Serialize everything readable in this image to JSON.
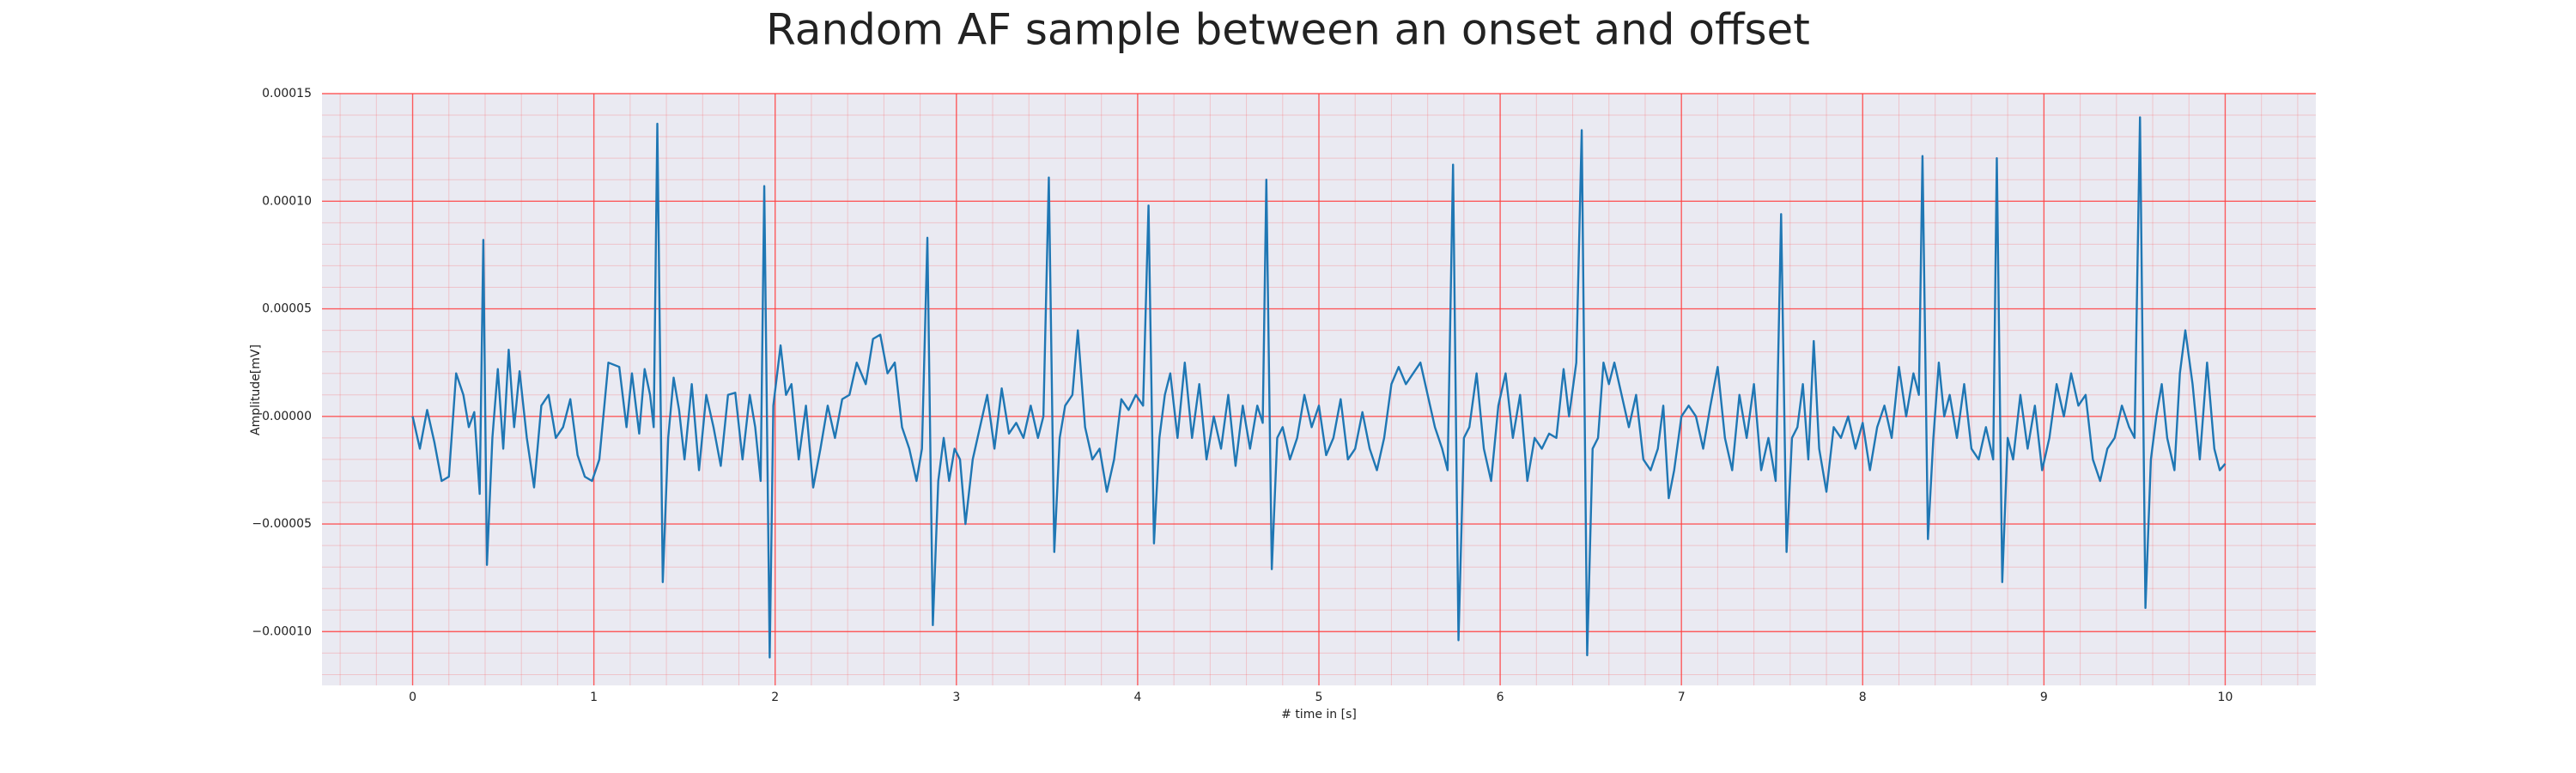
{
  "chart_data": {
    "type": "line",
    "title": "Random AF sample between an onset and offset",
    "xlabel": "# time in [s]",
    "ylabel": "Amplitude[mV]",
    "xlim": [
      -0.5,
      10.5
    ],
    "ylim": [
      -0.000125,
      0.00015
    ],
    "xticks": [
      0,
      1,
      2,
      3,
      4,
      5,
      6,
      7,
      8,
      9,
      10
    ],
    "yticks": [
      {
        "value": -0.0001,
        "label": "−0.00010"
      },
      {
        "value": -5e-05,
        "label": "−0.00005"
      },
      {
        "value": 0,
        "label": "0.00000"
      },
      {
        "value": 5e-05,
        "label": "0.00005"
      },
      {
        "value": 0.0001,
        "label": "0.00010"
      },
      {
        "value": 0.00015,
        "label": "0.00015"
      }
    ],
    "grid": true,
    "minor_grid": true,
    "grid_color": "#ff4040",
    "background": "#eaeaf2",
    "x": [
      0.0,
      0.04,
      0.08,
      0.12,
      0.16,
      0.2,
      0.24,
      0.28,
      0.31,
      0.34,
      0.37,
      0.39,
      0.41,
      0.44,
      0.47,
      0.5,
      0.53,
      0.56,
      0.59,
      0.63,
      0.67,
      0.71,
      0.75,
      0.79,
      0.83,
      0.87,
      0.91,
      0.95,
      0.99,
      1.03,
      1.08,
      1.14,
      1.18,
      1.21,
      1.25,
      1.28,
      1.31,
      1.33,
      1.35,
      1.38,
      1.41,
      1.44,
      1.47,
      1.5,
      1.54,
      1.58,
      1.62,
      1.66,
      1.7,
      1.74,
      1.78,
      1.82,
      1.86,
      1.89,
      1.92,
      1.94,
      1.97,
      1.99,
      2.03,
      2.06,
      2.09,
      2.13,
      2.17,
      2.21,
      2.25,
      2.29,
      2.33,
      2.37,
      2.41,
      2.45,
      2.5,
      2.54,
      2.58,
      2.62,
      2.66,
      2.7,
      2.74,
      2.78,
      2.81,
      2.84,
      2.87,
      2.9,
      2.93,
      2.96,
      2.99,
      3.02,
      3.05,
      3.09,
      3.13,
      3.17,
      3.21,
      3.25,
      3.29,
      3.33,
      3.37,
      3.41,
      3.45,
      3.48,
      3.51,
      3.54,
      3.57,
      3.6,
      3.64,
      3.67,
      3.71,
      3.75,
      3.79,
      3.83,
      3.87,
      3.91,
      3.95,
      3.99,
      4.03,
      4.06,
      4.09,
      4.12,
      4.15,
      4.18,
      4.22,
      4.26,
      4.3,
      4.34,
      4.38,
      4.42,
      4.46,
      4.5,
      4.54,
      4.58,
      4.62,
      4.66,
      4.69,
      4.71,
      4.74,
      4.77,
      4.8,
      4.84,
      4.88,
      4.92,
      4.96,
      5.0,
      5.04,
      5.08,
      5.12,
      5.16,
      5.2,
      5.24,
      5.28,
      5.32,
      5.36,
      5.4,
      5.44,
      5.48,
      5.52,
      5.56,
      5.6,
      5.64,
      5.68,
      5.71,
      5.74,
      5.77,
      5.8,
      5.83,
      5.87,
      5.91,
      5.95,
      5.99,
      6.03,
      6.07,
      6.11,
      6.15,
      6.19,
      6.23,
      6.27,
      6.31,
      6.35,
      6.38,
      6.42,
      6.45,
      6.48,
      6.51,
      6.54,
      6.57,
      6.6,
      6.63,
      6.67,
      6.71,
      6.75,
      6.79,
      6.83,
      6.87,
      6.9,
      6.93,
      6.96,
      7.0,
      7.04,
      7.08,
      7.12,
      7.16,
      7.2,
      7.24,
      7.28,
      7.32,
      7.36,
      7.4,
      7.44,
      7.48,
      7.52,
      7.55,
      7.58,
      7.61,
      7.64,
      7.67,
      7.7,
      7.73,
      7.76,
      7.8,
      7.84,
      7.88,
      7.92,
      7.96,
      8.0,
      8.04,
      8.08,
      8.12,
      8.16,
      8.2,
      8.24,
      8.28,
      8.31,
      8.33,
      8.36,
      8.39,
      8.42,
      8.45,
      8.48,
      8.52,
      8.56,
      8.6,
      8.64,
      8.68,
      8.72,
      8.74,
      8.77,
      8.8,
      8.83,
      8.87,
      8.91,
      8.95,
      8.99,
      9.03,
      9.07,
      9.11,
      9.15,
      9.19,
      9.23,
      9.27,
      9.31,
      9.35,
      9.39,
      9.43,
      9.47,
      9.5,
      9.53,
      9.56,
      9.59,
      9.62,
      9.65,
      9.68,
      9.72,
      9.75,
      9.78,
      9.82,
      9.86,
      9.9,
      9.94,
      9.97,
      10.0
    ],
    "series": [
      {
        "color": "#1f77b4",
        "values": [
          0,
          -1.5e-05,
          3e-06,
          -1.2e-05,
          -3e-05,
          -2.8e-05,
          2e-05,
          1e-05,
          -5e-06,
          2e-06,
          -3.6e-05,
          8.2e-05,
          -6.9e-05,
          -1e-05,
          2.2e-05,
          -1.5e-05,
          3.1e-05,
          -5e-06,
          2.1e-05,
          -1e-05,
          -3.3e-05,
          5e-06,
          1e-05,
          -1e-05,
          -5e-06,
          8e-06,
          -1.8e-05,
          -2.8e-05,
          -3e-05,
          -2e-05,
          2.5e-05,
          2.3e-05,
          -5e-06,
          2e-05,
          -8e-06,
          2.2e-05,
          1e-05,
          -5e-06,
          0.000136,
          -7.7e-05,
          -1e-05,
          1.8e-05,
          3e-06,
          -2e-05,
          1.5e-05,
          -2.5e-05,
          1e-05,
          -5e-06,
          -2.3e-05,
          1e-05,
          1.1e-05,
          -2e-05,
          1e-05,
          -5e-06,
          -3e-05,
          0.000107,
          -0.000112,
          5e-06,
          3.3e-05,
          1e-05,
          1.5e-05,
          -2e-05,
          5e-06,
          -3.3e-05,
          -1.5e-05,
          5e-06,
          -1e-05,
          8e-06,
          1e-05,
          2.5e-05,
          1.5e-05,
          3.6e-05,
          3.8e-05,
          2e-05,
          2.5e-05,
          -5e-06,
          -1.5e-05,
          -3e-05,
          -1.5e-05,
          8.3e-05,
          -9.7e-05,
          -3e-05,
          -1e-05,
          -3e-05,
          -1.5e-05,
          -2e-05,
          -5e-05,
          -2e-05,
          -5e-06,
          1e-05,
          -1.5e-05,
          1.3e-05,
          -8e-06,
          -3e-06,
          -1e-05,
          5e-06,
          -1e-05,
          0,
          0.000111,
          -6.3e-05,
          -1e-05,
          5e-06,
          1e-05,
          4e-05,
          -5e-06,
          -2e-05,
          -1.5e-05,
          -3.5e-05,
          -2e-05,
          8e-06,
          3e-06,
          1e-05,
          5e-06,
          9.8e-05,
          -5.9e-05,
          -1e-05,
          1e-05,
          2e-05,
          -1e-05,
          2.5e-05,
          -1e-05,
          1.5e-05,
          -2e-05,
          0,
          -1.5e-05,
          1e-05,
          -2.3e-05,
          5e-06,
          -1.5e-05,
          5e-06,
          -3e-06,
          0.00011,
          -7.1e-05,
          -1e-05,
          -5e-06,
          -2e-05,
          -1e-05,
          1e-05,
          -5e-06,
          5e-06,
          -1.8e-05,
          -1e-05,
          8e-06,
          -2e-05,
          -1.5e-05,
          2e-06,
          -1.5e-05,
          -2.5e-05,
          -1e-05,
          1.5e-05,
          2.3e-05,
          1.5e-05,
          2e-05,
          2.5e-05,
          1e-05,
          -5e-06,
          -1.5e-05,
          -2.5e-05,
          0.000117,
          -0.000104,
          -1e-05,
          -5e-06,
          2e-05,
          -1.5e-05,
          -3e-05,
          5e-06,
          2e-05,
          -1e-05,
          1e-05,
          -3e-05,
          -1e-05,
          -1.5e-05,
          -8e-06,
          -1e-05,
          2.2e-05,
          0,
          2.5e-05,
          0.000133,
          -0.000111,
          -1.5e-05,
          -1e-05,
          2.5e-05,
          1.5e-05,
          2.5e-05,
          1e-05,
          -5e-06,
          1e-05,
          -2e-05,
          -2.5e-05,
          -1.5e-05,
          5e-06,
          -3.8e-05,
          -2.5e-05,
          0,
          5e-06,
          0,
          -1.5e-05,
          5e-06,
          2.3e-05,
          -1e-05,
          -2.5e-05,
          1e-05,
          -1e-05,
          1.5e-05,
          -2.5e-05,
          -1e-05,
          -3e-05,
          9.4e-05,
          -6.3e-05,
          -1e-05,
          -5e-06,
          1.5e-05,
          -2e-05,
          3.5e-05,
          -1.5e-05,
          -3.5e-05,
          -5e-06,
          -1e-05,
          0,
          -1.5e-05,
          -3e-06,
          -2.5e-05,
          -5e-06,
          5e-06,
          -1e-05,
          2.3e-05,
          0,
          2e-05,
          1e-05,
          0.000121,
          -5.7e-05,
          -1e-05,
          2.5e-05,
          0,
          1e-05,
          -1e-05,
          1.5e-05,
          -1.5e-05,
          -2e-05,
          -5e-06,
          -2e-05,
          0.00012,
          -7.7e-05,
          -1e-05,
          -2e-05,
          1e-05,
          -1.5e-05,
          5e-06,
          -2.5e-05,
          -1e-05,
          1.5e-05,
          0,
          2e-05,
          5e-06,
          1e-05,
          -2e-05,
          -3e-05,
          -1.5e-05,
          -1e-05,
          5e-06,
          -5e-06,
          -1e-05,
          0.000139,
          -8.9e-05,
          -2e-05,
          0,
          1.5e-05,
          -1e-05,
          -2.5e-05,
          2e-05,
          4e-05,
          1.5e-05,
          -2e-05,
          2.5e-05,
          -1.5e-05,
          -2.5e-05,
          -2.2e-05
        ]
      }
    ]
  }
}
